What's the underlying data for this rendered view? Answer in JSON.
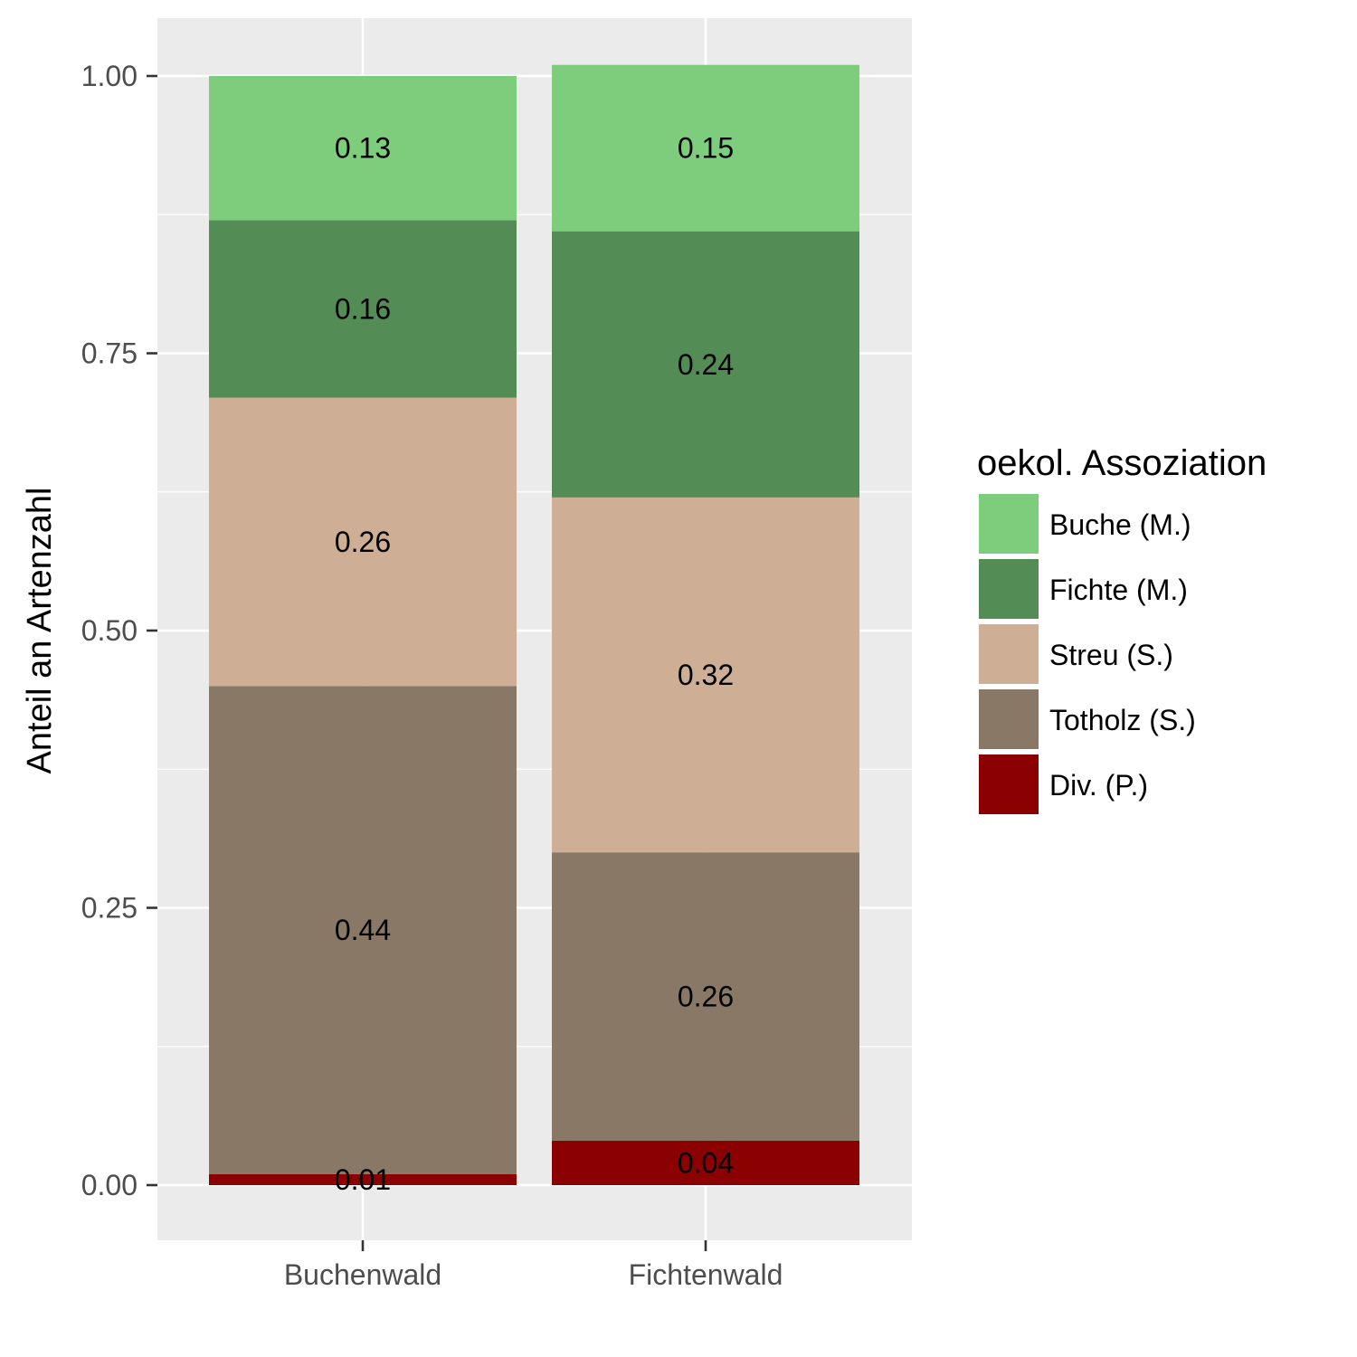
{
  "chart_data": {
    "type": "bar",
    "stacked": true,
    "categories": [
      "Buchenwald",
      "Fichtenwald"
    ],
    "series": [
      {
        "name": "Buche (M.)",
        "color": "#7dcd7d",
        "values": [
          0.13,
          0.15
        ]
      },
      {
        "name": "Fichte (M.)",
        "color": "#548c55",
        "values": [
          0.16,
          0.24
        ]
      },
      {
        "name": "Streu (S.)",
        "color": "#ceae95",
        "values": [
          0.26,
          0.32
        ]
      },
      {
        "name": "Totholz (S.)",
        "color": "#8a7866",
        "values": [
          0.44,
          0.26
        ]
      },
      {
        "name": "Div. (P.)",
        "color": "#8b0000",
        "values": [
          0.01,
          0.04
        ]
      }
    ],
    "xlabel": "",
    "ylabel": "Anteil an Artenzahl",
    "ylim": [
      -0.05,
      1.05
    ],
    "yticks": [
      "0.00",
      "0.25",
      "0.50",
      "0.75",
      "1.00"
    ],
    "legend_title": "oekol. Assoziation",
    "legend_position": "right",
    "grid": true,
    "panel_background": "#ebebeb"
  }
}
